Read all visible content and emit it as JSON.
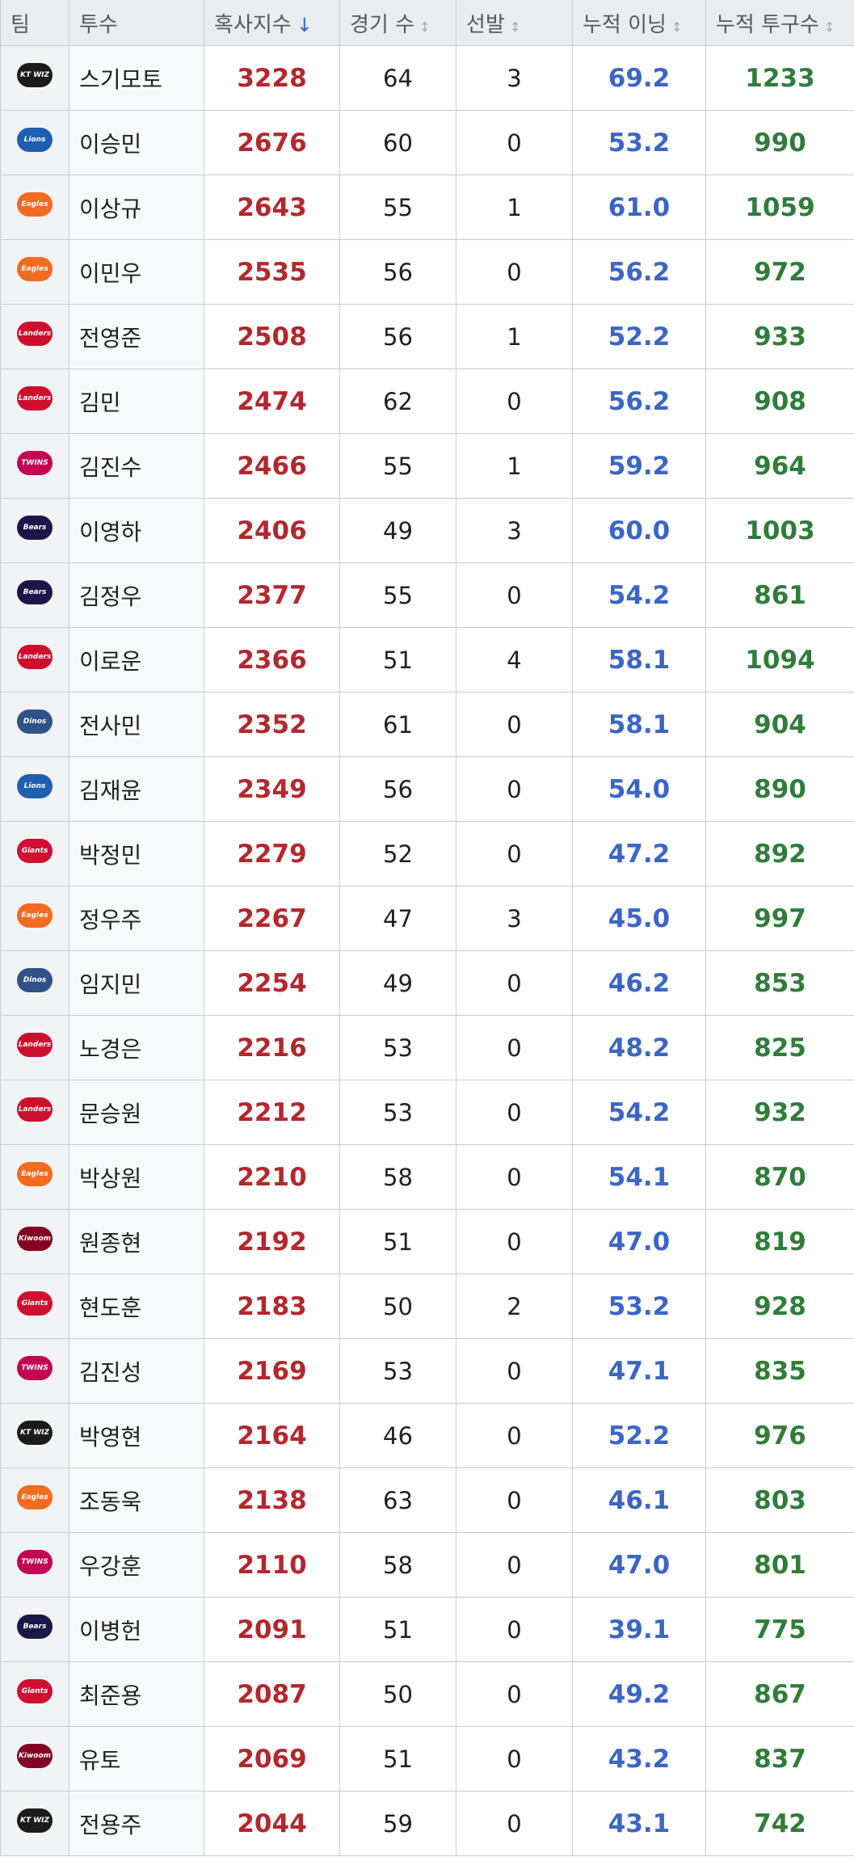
{
  "table": {
    "header": [
      "팀",
      "투수",
      "혹사지수",
      "경기 수",
      "선발",
      "누적 이닝",
      "누적 투구수"
    ],
    "rows": [
      [
        "KT WIZ",
        "스기모토",
        "3228",
        "64",
        "3",
        "69.2",
        "1233"
      ],
      [
        "Lions",
        "이승민",
        "2676",
        "60",
        "0",
        "53.2",
        "990"
      ],
      [
        "Eagles",
        "이상규",
        "2643",
        "55",
        "1",
        "61.0",
        "1059"
      ],
      [
        "Eagles",
        "이민우",
        "2535",
        "56",
        "0",
        "56.2",
        "972"
      ],
      [
        "Landers",
        "전영준",
        "2508",
        "56",
        "1",
        "52.2",
        "933"
      ],
      [
        "Landers",
        "김민",
        "2474",
        "62",
        "0",
        "56.2",
        "908"
      ],
      [
        "TWINS",
        "김진수",
        "2466",
        "55",
        "1",
        "59.2",
        "964"
      ],
      [
        "Bears",
        "이영하",
        "2406",
        "49",
        "3",
        "60.0",
        "1003"
      ],
      [
        "Bears",
        "김정우",
        "2377",
        "55",
        "0",
        "54.2",
        "861"
      ],
      [
        "Landers",
        "이로운",
        "2366",
        "51",
        "4",
        "58.1",
        "1094"
      ],
      [
        "Dinos",
        "전사민",
        "2352",
        "61",
        "0",
        "58.1",
        "904"
      ],
      [
        "Lions",
        "김재윤",
        "2349",
        "56",
        "0",
        "54.0",
        "890"
      ],
      [
        "Giants",
        "박정민",
        "2279",
        "52",
        "0",
        "47.2",
        "892"
      ],
      [
        "Eagles",
        "정우주",
        "2267",
        "47",
        "3",
        "45.0",
        "997"
      ],
      [
        "Dinos",
        "임지민",
        "2254",
        "49",
        "0",
        "46.2",
        "853"
      ],
      [
        "Landers",
        "노경은",
        "2216",
        "53",
        "0",
        "48.2",
        "825"
      ],
      [
        "Landers",
        "문승원",
        "2212",
        "53",
        "0",
        "54.2",
        "932"
      ],
      [
        "Eagles",
        "박상원",
        "2210",
        "58",
        "0",
        "54.1",
        "870"
      ],
      [
        "Kiwoom",
        "원종현",
        "2192",
        "51",
        "0",
        "47.0",
        "819"
      ],
      [
        "Giants",
        "현도훈",
        "2183",
        "50",
        "2",
        "53.2",
        "928"
      ],
      [
        "TWINS",
        "김진성",
        "2169",
        "53",
        "0",
        "47.1",
        "835"
      ],
      [
        "KT WIZ",
        "박영현",
        "2164",
        "46",
        "0",
        "52.2",
        "976"
      ],
      [
        "Eagles",
        "조동욱",
        "2138",
        "63",
        "0",
        "46.1",
        "803"
      ],
      [
        "TWINS",
        "우강훈",
        "2110",
        "58",
        "0",
        "47.0",
        "801"
      ],
      [
        "Bears",
        "이병헌",
        "2091",
        "51",
        "0",
        "39.1",
        "775"
      ],
      [
        "Giants",
        "최준용",
        "2087",
        "50",
        "0",
        "49.2",
        "867"
      ],
      [
        "Kiwoom",
        "유토",
        "2069",
        "51",
        "0",
        "43.2",
        "837"
      ],
      [
        "KT WIZ",
        "전용주",
        "2044",
        "59",
        "0",
        "43.1",
        "742"
      ]
    ]
  }
}
